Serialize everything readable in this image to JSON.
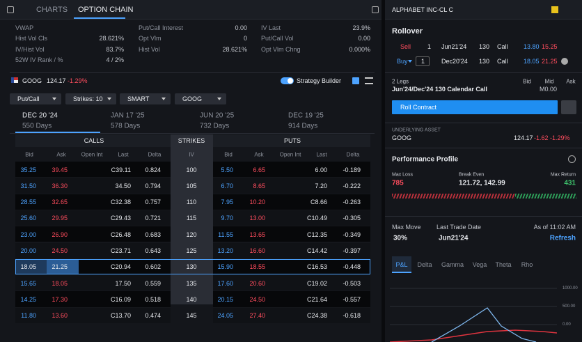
{
  "left_panel": {
    "tabs": [
      "CHARTS",
      "OPTION CHAIN"
    ],
    "stats": [
      [
        {
          "label": "VWAP"
        },
        {
          "label": "Hist Vol Cls",
          "value": "28.621%"
        },
        {
          "label": "IV/Hist Vol",
          "value": "83.7%"
        },
        {
          "label": "52W IV Rank / %",
          "value": "4 / 2%"
        }
      ],
      [
        {
          "label": "Put/Call Interest",
          "value": "0.00"
        },
        {
          "label": "Opt Vlm",
          "value": "0"
        },
        {
          "label": "Hist Vol",
          "value": "28.621%"
        }
      ],
      [
        {
          "label": "IV Last",
          "value": "23.9%"
        },
        {
          "label": "Put/Call Vol",
          "value": "0.00"
        },
        {
          "label": "Opt Vlm Chng",
          "value": "0.000%"
        }
      ]
    ],
    "quote": {
      "symbol": "GOOG",
      "price": "124.17",
      "change": "-1.29%"
    },
    "strategy_builder": "Strategy Builder",
    "filters": [
      "Put/Call",
      "Strikes: 10",
      "SMART",
      "GOOG"
    ],
    "expiries": [
      {
        "date": "DEC 20 '24",
        "days": "550 Days"
      },
      {
        "date": "JAN 17 '25",
        "days": "578 Days"
      },
      {
        "date": "JUN 20 '25",
        "days": "732 Days"
      },
      {
        "date": "DEC 19 '25",
        "days": "914 Days"
      }
    ],
    "table": {
      "groups": [
        "CALLS",
        "STRIKES",
        "PUTS"
      ],
      "columns": [
        "Bid",
        "Ask",
        "Open Int",
        "Last",
        "Delta",
        "IV",
        "Bid",
        "Ask",
        "Open Int",
        "Last",
        "Delta"
      ],
      "rows": [
        [
          "35.25",
          "39.45",
          "C39.11",
          "0.824",
          "100",
          "5.50",
          "6.65",
          "6.00",
          "-0.189"
        ],
        [
          "31.50",
          "36.30",
          "34.50",
          "0.794",
          "105",
          "6.70",
          "8.65",
          "7.20",
          "-0.222"
        ],
        [
          "28.55",
          "32.65",
          "C32.38",
          "0.757",
          "110",
          "7.95",
          "10.20",
          "C8.66",
          "-0.263"
        ],
        [
          "25.60",
          "29.95",
          "C29.43",
          "0.721",
          "115",
          "9.70",
          "13.00",
          "C10.49",
          "-0.305"
        ],
        [
          "23.00",
          "26.90",
          "C26.48",
          "0.683",
          "120",
          "11.55",
          "13.65",
          "C12.35",
          "-0.349"
        ],
        [
          "20.00",
          "24.50",
          "C23.71",
          "0.643",
          "125",
          "13.20",
          "16.60",
          "C14.42",
          "-0.397"
        ],
        [
          "18.05",
          "21.25",
          "C20.94",
          "0.602",
          "130",
          "15.90",
          "18.55",
          "C16.53",
          "-0.448"
        ],
        [
          "15.65",
          "18.05",
          "17.50",
          "0.559",
          "135",
          "17.60",
          "20.60",
          "C19.02",
          "-0.503"
        ],
        [
          "14.25",
          "17.30",
          "C16.09",
          "0.518",
          "140",
          "20.15",
          "24.50",
          "C21.64",
          "-0.557"
        ],
        [
          "11.80",
          "13.60",
          "C13.70",
          "0.474",
          "145",
          "24.05",
          "27.40",
          "C24.38",
          "-0.618"
        ]
      ]
    }
  },
  "right_panel": {
    "title": "ALPHABET INC-CL C",
    "rollover": "Rollover",
    "legs": [
      {
        "side": "Sell",
        "qty": "1",
        "expiry": "Jun21'24",
        "strike": "130",
        "right": "Call",
        "bid": "13.80",
        "ask": "15.25"
      },
      {
        "side": "Buy",
        "qty": "1",
        "expiry": "Dec20'24",
        "strike": "130",
        "right": "Call",
        "bid": "18.05",
        "ask": "21.25"
      }
    ],
    "legs_count": "2 Legs",
    "quote_headers": [
      "Bid",
      "Mid",
      "Ask"
    ],
    "strategy": "Jun'24/Dec'24 130 Calendar Call",
    "mid": "M0.00",
    "roll_button": "Roll Contract",
    "underlying": {
      "label": "UNDERLYING ASSET",
      "symbol": "GOOG",
      "price": "124.17",
      "change": "-1.62 -1.29%"
    },
    "performance": {
      "title": "Performance Profile",
      "max_loss": {
        "label": "Max Loss",
        "value": "785"
      },
      "break_even": {
        "label": "Break Even",
        "value": "121.72, 142.99"
      },
      "max_return": {
        "label": "Max Return",
        "value": "431"
      }
    },
    "max_move": {
      "label": "Max Move",
      "value": "30%"
    },
    "last_trade_date": {
      "label": "Last Trade Date",
      "value": "Jun21'24"
    },
    "as_of": "As of 11:02 AM",
    "refresh": "Refresh",
    "greek_tabs": [
      "P&L",
      "Delta",
      "Gamma",
      "Vega",
      "Theta",
      "Rho"
    ],
    "chart_ticks": [
      "1000.00",
      "500.00",
      "0.00"
    ]
  }
}
